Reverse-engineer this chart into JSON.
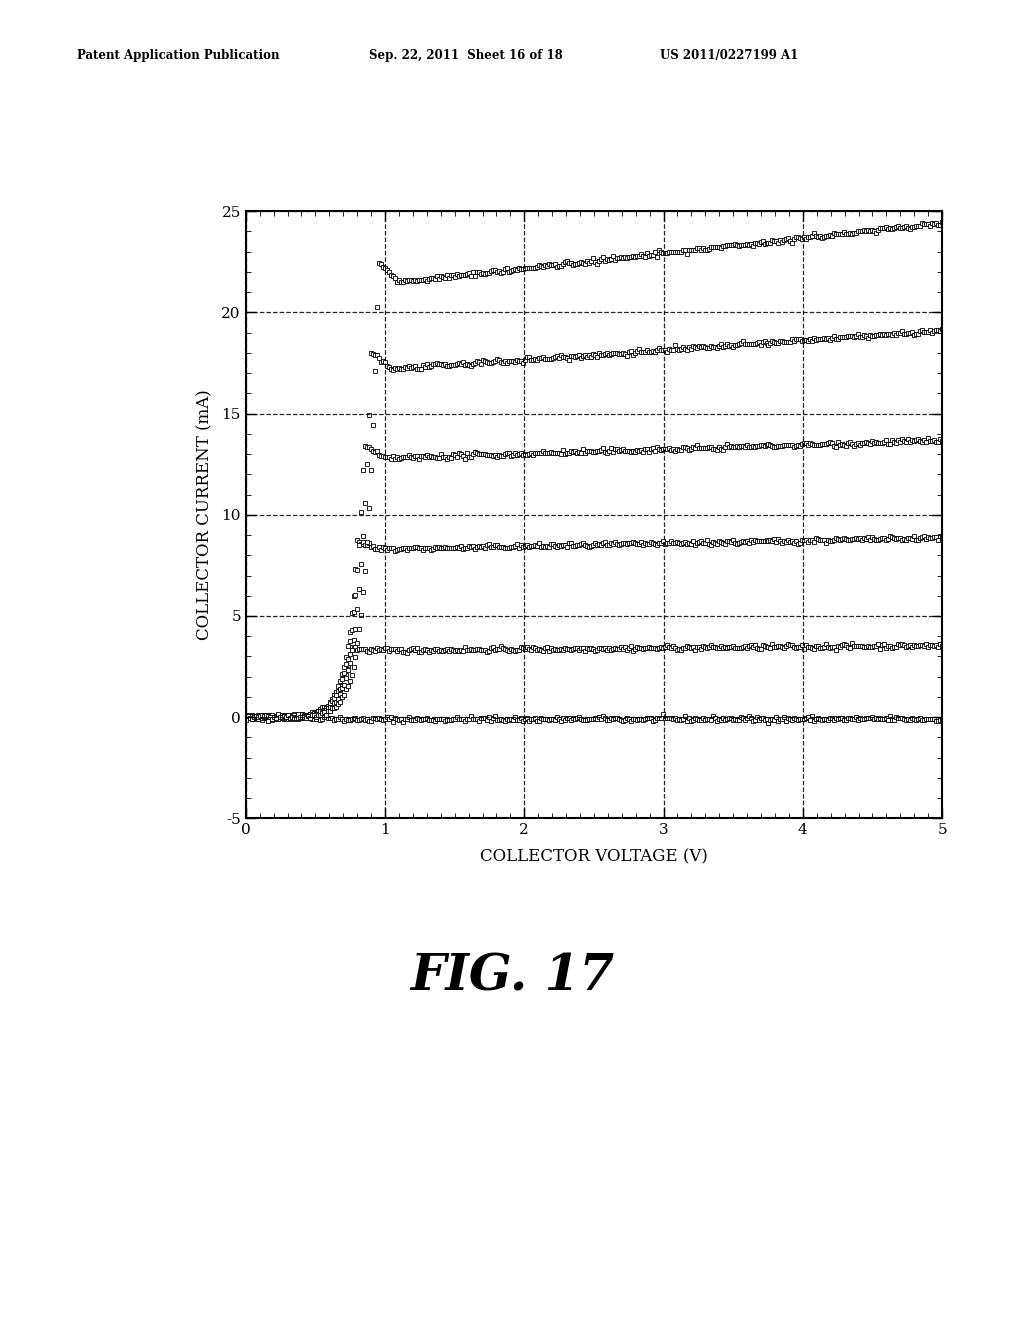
{
  "xlabel": "COLLECTOR VOLTAGE (V)",
  "ylabel": "COLLECTOR CURRENT (mA)",
  "xlim": [
    0,
    5
  ],
  "ylim": [
    -5,
    25
  ],
  "xticks": [
    0,
    1,
    2,
    3,
    4,
    5
  ],
  "yticks": [
    -5,
    0,
    5,
    10,
    15,
    20,
    25
  ],
  "header_left": "Patent Application Publication",
  "header_mid": "Sep. 22, 2011  Sheet 16 of 18",
  "header_right": "US 2011/0227199 A1",
  "fig_label": "FIG. 17",
  "curves": [
    {
      "knee": 0.7,
      "Ic_peak": 0.0,
      "Ic_plateau": -0.1,
      "slope": 0.005
    },
    {
      "knee": 0.75,
      "Ic_peak": 3.3,
      "Ic_plateau": 3.3,
      "slope": 0.06
    },
    {
      "knee": 0.8,
      "Ic_peak": 8.3,
      "Ic_plateau": 8.3,
      "slope": 0.14
    },
    {
      "knee": 0.85,
      "Ic_peak": 12.8,
      "Ic_plateau": 12.8,
      "slope": 0.22
    },
    {
      "knee": 0.9,
      "Ic_peak": 17.2,
      "Ic_plateau": 17.2,
      "slope": 0.48
    },
    {
      "knee": 0.95,
      "Ic_peak": 21.5,
      "Ic_plateau": 21.5,
      "slope": 0.75
    }
  ],
  "background_color": "#ffffff",
  "line_color": "#000000"
}
